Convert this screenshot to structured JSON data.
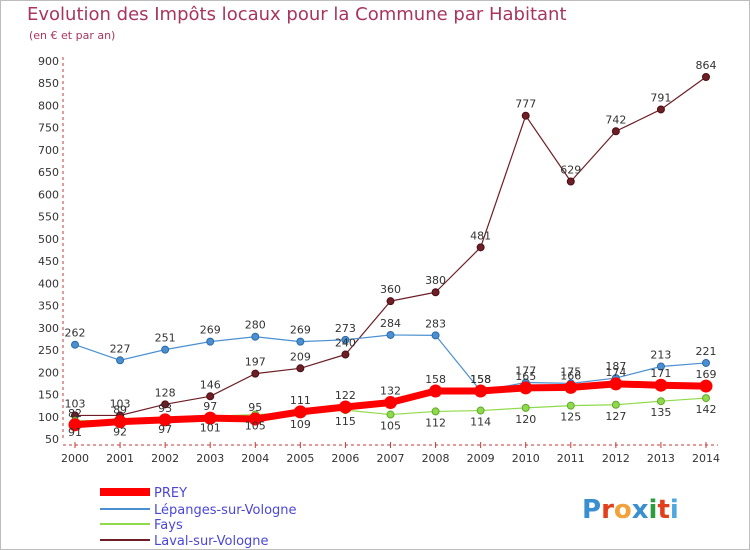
{
  "header": {
    "title": "Evolution des Impôts locaux pour la Commune par Habitant",
    "subtitle": "(en € et par an)"
  },
  "logo": {
    "text": "Proxiti",
    "letter_colors": [
      "#3a8fd0",
      "#e2401c",
      "#f2a23a",
      "#3a8fd0",
      "#2d9c3c",
      "#e2401c",
      "#4fa6e0"
    ]
  },
  "chart_data": {
    "type": "line",
    "x": [
      "2000",
      "2001",
      "2002",
      "2003",
      "2004",
      "2005",
      "2006",
      "2007",
      "2008",
      "2009",
      "2010",
      "2011",
      "2012",
      "2013",
      "2014"
    ],
    "ylim": [
      50,
      900
    ],
    "yticks": [
      50,
      100,
      150,
      200,
      250,
      300,
      350,
      400,
      450,
      500,
      550,
      600,
      650,
      700,
      750,
      800,
      850,
      900
    ],
    "grid": false,
    "legend_position": "bottom-left",
    "series": [
      {
        "name": "Laval-sur-Vologne",
        "color": "#6e1e25",
        "values": [
          103,
          103,
          128,
          146,
          197,
          209,
          240,
          360,
          380,
          481,
          777,
          629,
          742,
          791,
          864
        ]
      },
      {
        "name": "Lépanges-sur-Vologne",
        "color": "#4a90d0",
        "values": [
          262,
          227,
          251,
          269,
          280,
          269,
          273,
          284,
          283,
          158,
          177,
          175,
          187,
          213,
          221
        ]
      },
      {
        "name": "Fays",
        "color": "#8fda4a",
        "values": [
          91,
          92,
          97,
          101,
          105,
          109,
          115,
          105,
          112,
          114,
          120,
          125,
          127,
          135,
          142
        ]
      },
      {
        "name": "PREY",
        "color": "#ff0000",
        "values": [
          82,
          89,
          93,
          97,
          95,
          111,
          122,
          132,
          158,
          158,
          165,
          166,
          174,
          171,
          169
        ]
      }
    ],
    "legend_order": [
      "PREY",
      "Lépanges-sur-Vologne",
      "Fays",
      "Laval-sur-Vologne"
    ]
  }
}
